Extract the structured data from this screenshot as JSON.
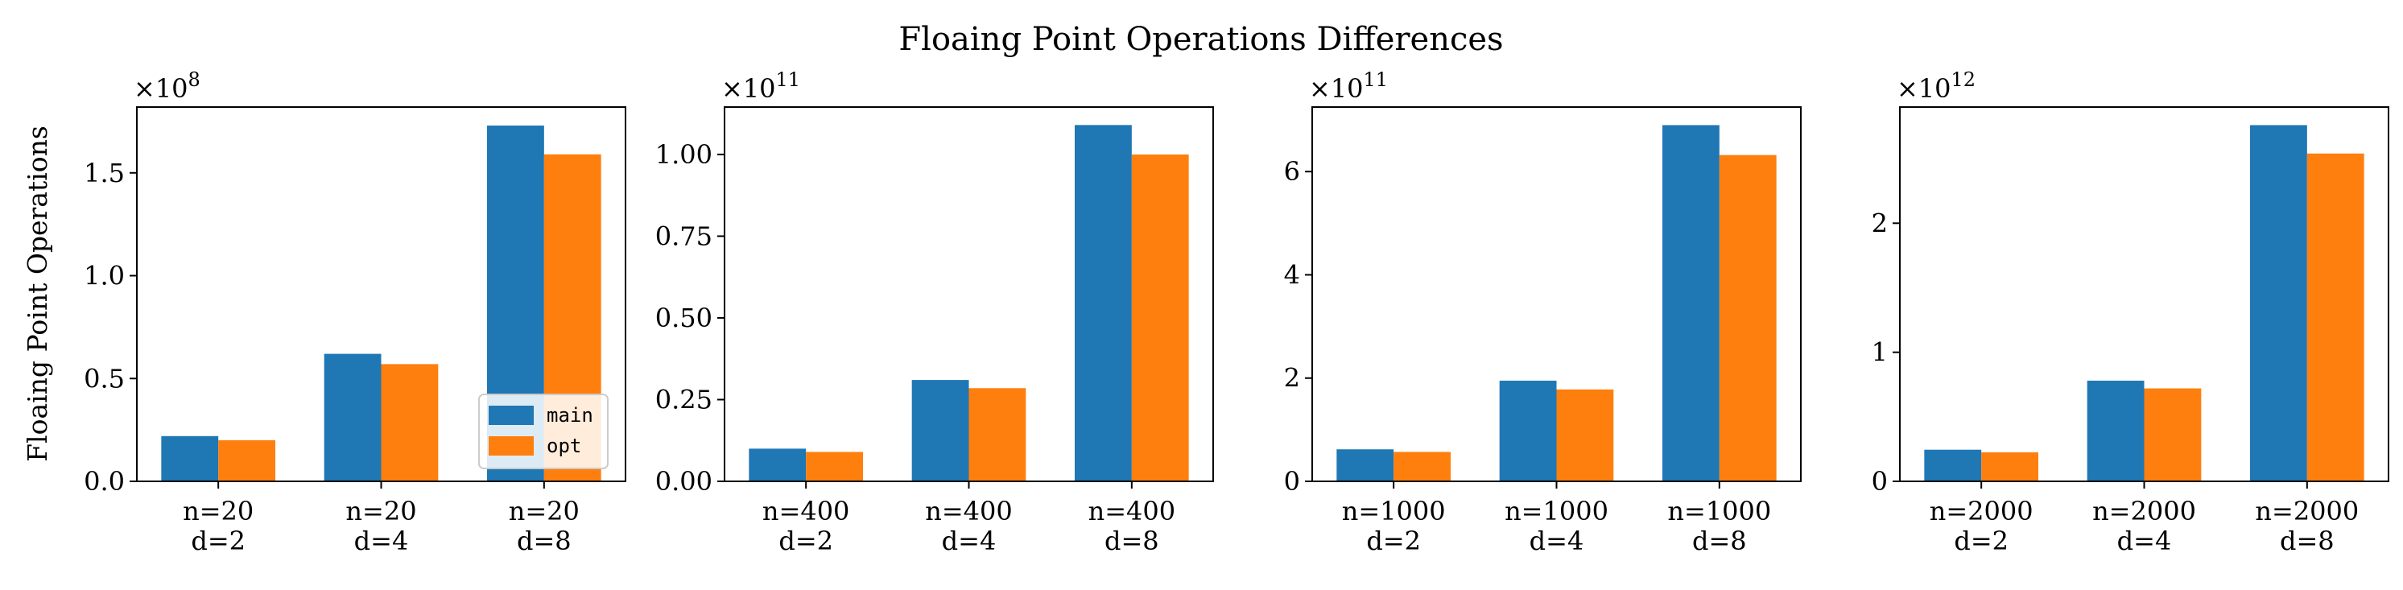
{
  "figure_title": "Floaing Point Operations Differences",
  "ylabel": "Floaing Point Operations",
  "legend": {
    "placement": "lower-right",
    "entries": [
      "main",
      "opt"
    ]
  },
  "colors": {
    "main": "#1f77b4",
    "opt": "#ff7f0e"
  },
  "chart_data": [
    {
      "type": "bar",
      "multiplier": "×10",
      "exponent": "8",
      "categories": [
        [
          "n=20",
          "d=2"
        ],
        [
          "n=20",
          "d=4"
        ],
        [
          "n=20",
          "d=8"
        ]
      ],
      "series": [
        {
          "name": "main",
          "values": [
            0.22,
            0.62,
            1.73
          ]
        },
        {
          "name": "opt",
          "values": [
            0.2,
            0.57,
            1.59
          ]
        }
      ],
      "ylim": [
        0,
        1.82
      ],
      "yticks": [
        0.0,
        0.5,
        1.0,
        1.5
      ],
      "ytick_labels": [
        "0.0",
        "0.5",
        "1.0",
        "1.5"
      ]
    },
    {
      "type": "bar",
      "multiplier": "×10",
      "exponent": "11",
      "categories": [
        [
          "n=400",
          "d=2"
        ],
        [
          "n=400",
          "d=4"
        ],
        [
          "n=400",
          "d=8"
        ]
      ],
      "series": [
        {
          "name": "main",
          "values": [
            0.1,
            0.31,
            1.09
          ]
        },
        {
          "name": "opt",
          "values": [
            0.09,
            0.285,
            1.0
          ]
        }
      ],
      "ylim": [
        0,
        1.145
      ],
      "yticks": [
        0.0,
        0.25,
        0.5,
        0.75,
        1.0
      ],
      "ytick_labels": [
        "0.00",
        "0.25",
        "0.50",
        "0.75",
        "1.00"
      ]
    },
    {
      "type": "bar",
      "multiplier": "×10",
      "exponent": "11",
      "categories": [
        [
          "n=1000",
          "d=2"
        ],
        [
          "n=1000",
          "d=4"
        ],
        [
          "n=1000",
          "d=8"
        ]
      ],
      "series": [
        {
          "name": "main",
          "values": [
            0.62,
            1.95,
            6.9
          ]
        },
        {
          "name": "opt",
          "values": [
            0.57,
            1.78,
            6.32
          ]
        }
      ],
      "ylim": [
        0,
        7.25
      ],
      "yticks": [
        0,
        2,
        4,
        6
      ],
      "ytick_labels": [
        "0",
        "2",
        "4",
        "6"
      ]
    },
    {
      "type": "bar",
      "multiplier": "×10",
      "exponent": "12",
      "categories": [
        [
          "n=2000",
          "d=2"
        ],
        [
          "n=2000",
          "d=4"
        ],
        [
          "n=2000",
          "d=8"
        ]
      ],
      "series": [
        {
          "name": "main",
          "values": [
            0.245,
            0.78,
            2.76
          ]
        },
        {
          "name": "opt",
          "values": [
            0.225,
            0.72,
            2.54
          ]
        }
      ],
      "ylim": [
        0,
        2.9
      ],
      "yticks": [
        0,
        1,
        2
      ],
      "ytick_labels": [
        "0",
        "1",
        "2"
      ]
    }
  ]
}
